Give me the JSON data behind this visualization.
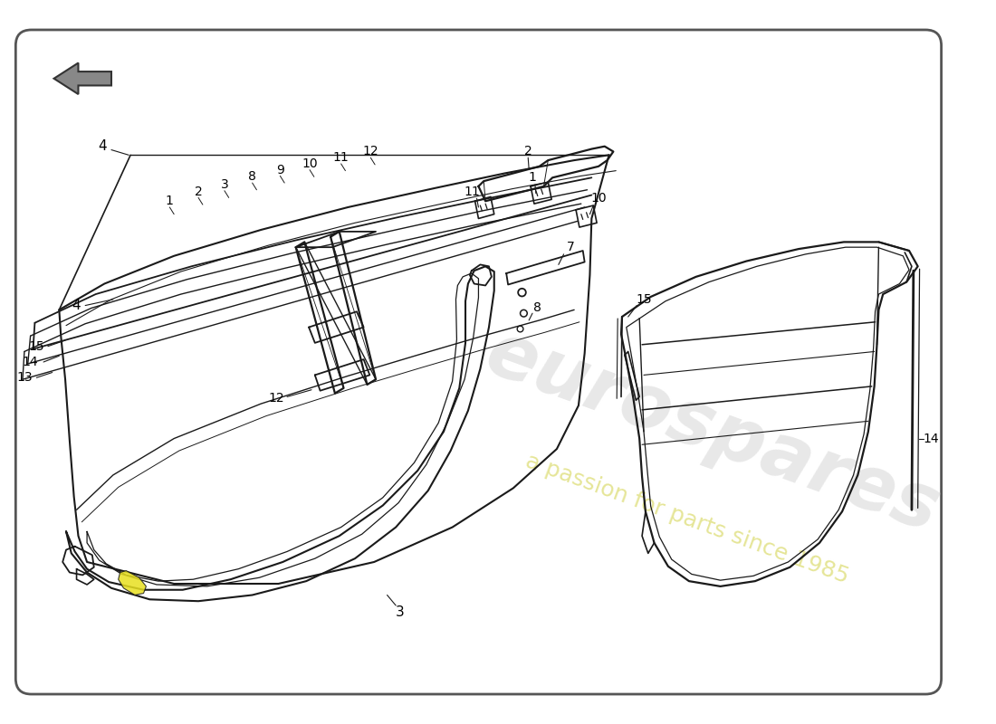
{
  "background_color": "#ffffff",
  "border_color": "#555555",
  "line_color": "#1a1a1a",
  "label_fontsize": 10,
  "watermark1": "eurospares",
  "watermark2": "a passion for parts since 1985",
  "watermark1_color": "#c8c8c8",
  "watermark2_color": "#d8d860",
  "highlight_color": "#e8e020",
  "arrow_fill": "#888888",
  "arrow_edge": "#333333"
}
